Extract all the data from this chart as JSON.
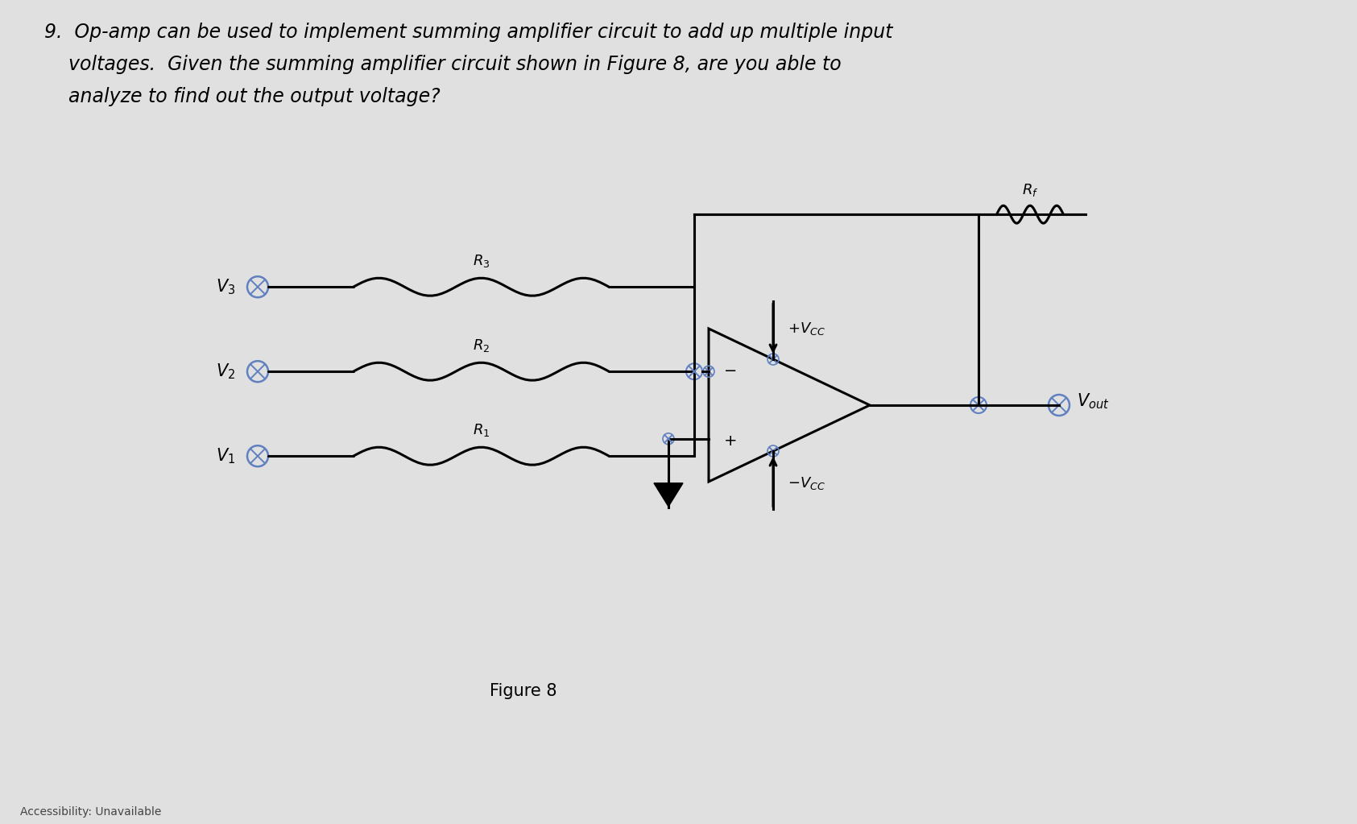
{
  "bg_color": "#e0e0e0",
  "line_color": "#000000",
  "node_color": "#6080c0",
  "text_color": "#000000",
  "question_line1": "9.  Op-amp can be used to implement summing amplifier circuit to add up multiple input",
  "question_line2": "    voltages.  Given the summing amplifier circuit shown in Figure 8, are you able to",
  "question_line3": "    analyze to find out the output voltage?",
  "figure_label": "Figure 8",
  "footer_text": "Accessibility: Unavailable",
  "q_fontsize": 17,
  "label_fontsize": 15,
  "small_fontsize": 13,
  "lw": 2.2
}
